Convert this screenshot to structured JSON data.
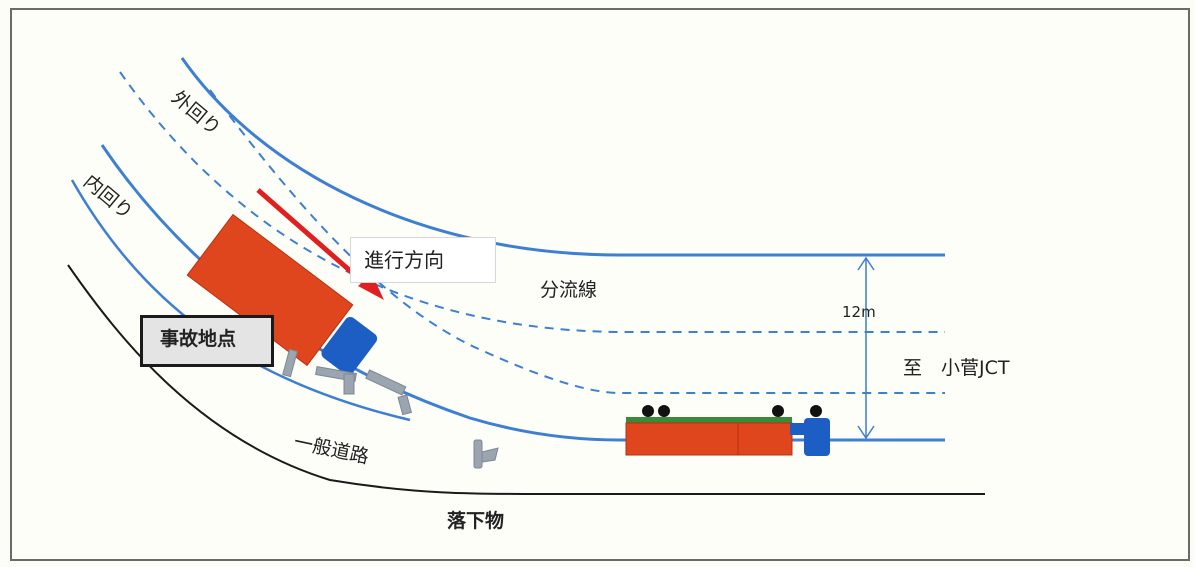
{
  "labels": {
    "outer_loop": "外回り",
    "inner_loop": "内回り",
    "direction": "進行方向",
    "diverge_line": "分流線",
    "width": "12m",
    "to_kosuge": "至　小菅JCT",
    "accident_site": "事故地点",
    "general_road": "一般道路",
    "fallen_object": "落下物"
  },
  "colors": {
    "road_line": "#3d7fd0",
    "truck_body": "#e0461e",
    "truck_cab": "#1c5ec4",
    "arrow": "#e02020",
    "flatbed": "#3a8a3a",
    "debris": "#9aa5b0"
  }
}
